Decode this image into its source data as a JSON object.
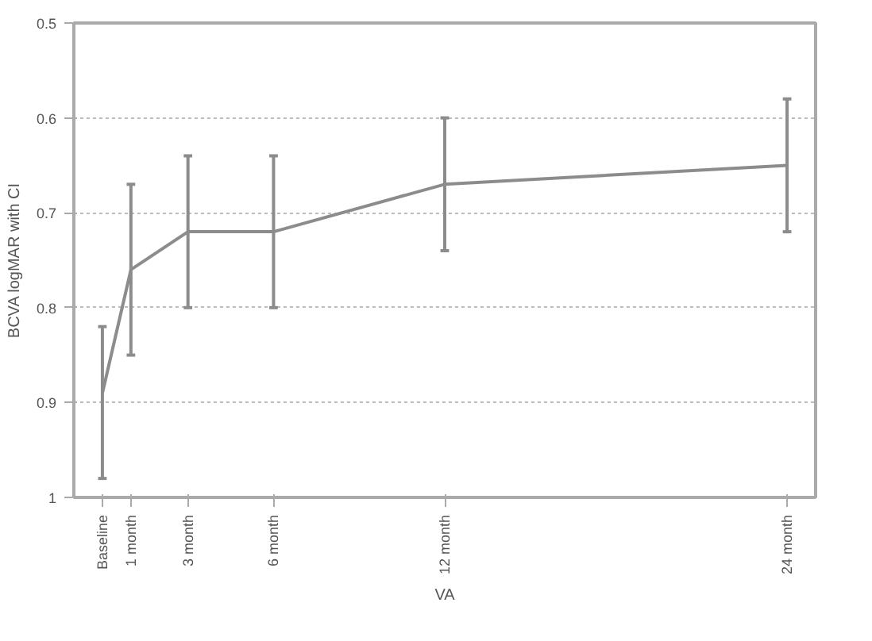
{
  "chart_data": {
    "type": "line",
    "xlabel": "VA",
    "ylabel": "BCVA logMAR with CI",
    "x": [
      0,
      1,
      3,
      6,
      12,
      24
    ],
    "series": [
      {
        "color": "#8c8c8c",
        "values": [
          0.89,
          0.76,
          0.72,
          0.72,
          0.67,
          0.65
        ],
        "errors": [
          [
            0.82,
            0.98
          ],
          [
            0.67,
            0.85
          ],
          [
            0.64,
            0.8
          ],
          [
            0.64,
            0.8
          ],
          [
            0.6,
            0.74
          ],
          [
            0.58,
            0.72
          ]
        ]
      }
    ],
    "xlim": [
      -1,
      25
    ],
    "xticks": [
      {
        "value": 0,
        "label": "Baseline"
      },
      {
        "value": 1,
        "label": "1 month"
      },
      {
        "value": 3,
        "label": "3 month"
      },
      {
        "value": 6,
        "label": "6 month"
      },
      {
        "value": 12,
        "label": "12 month"
      },
      {
        "value": 24,
        "label": "24 month"
      }
    ],
    "ylim": [
      1,
      0.5
    ],
    "yticks": [
      0.5,
      0.6,
      0.7,
      0.8,
      0.9,
      1
    ],
    "grid": "y",
    "marker": "none",
    "line_style": "solid"
  }
}
